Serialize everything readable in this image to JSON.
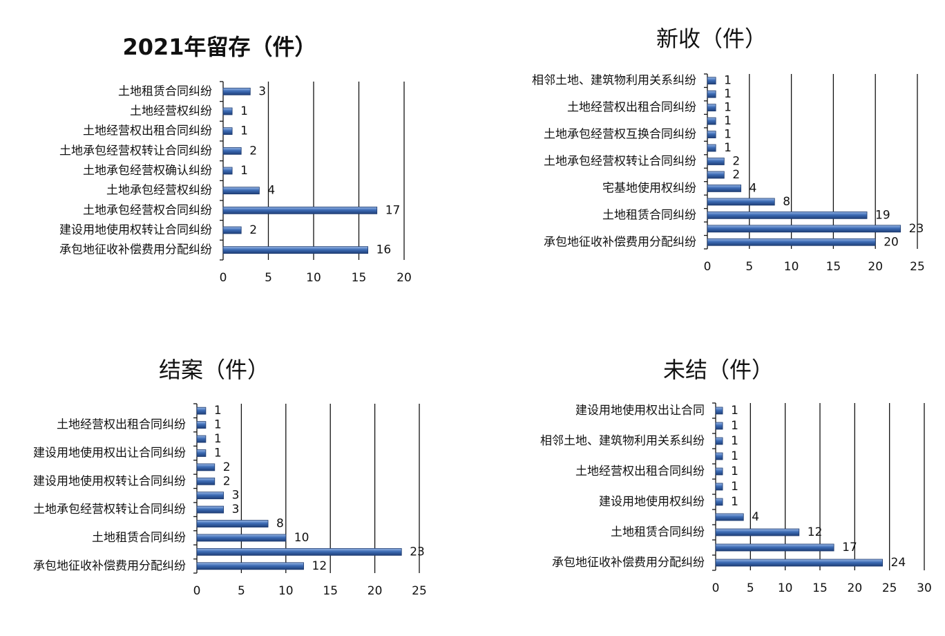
{
  "chart_data": [
    {
      "type": "bar",
      "orientation": "horizontal",
      "title": "2021年留存（件）",
      "categories": [
        "土地租赁合同纠纷",
        "土地经营权纠纷",
        "土地经营权出租合同纠纷",
        "土地承包经营权转让合同纠纷",
        "土地承包经营权确认纠纷",
        "土地承包经营权纠纷",
        "土地承包经营权合同纠纷",
        "建设用地使用权转让合同纠纷",
        "承包地征收补偿费用分配纠纷"
      ],
      "values": [
        3,
        1,
        1,
        2,
        1,
        4,
        17,
        2,
        16
      ],
      "color": "#3d6cb5",
      "xlim": [
        0,
        20
      ],
      "xticks": [
        0,
        5,
        10,
        15,
        20
      ],
      "grid": true
    },
    {
      "type": "bar",
      "orientation": "horizontal",
      "title": "新收（件）",
      "categories": [
        "相邻土地、建筑物利用关系纠纷",
        null,
        "土地经营权出租合同纠纷",
        null,
        "土地承包经营权互换合同纠纷",
        null,
        "土地承包经营权转让合同纠纷",
        null,
        "宅基地使用权纠纷",
        null,
        "土地租赁合同纠纷",
        null,
        "承包地征收补偿费用分配纠纷"
      ],
      "values": [
        1,
        1,
        1,
        1,
        1,
        1,
        2,
        2,
        4,
        8,
        19,
        23,
        20
      ],
      "color": "#3d6cb5",
      "xlim": [
        0,
        25
      ],
      "xticks": [
        0,
        5,
        10,
        15,
        20,
        25
      ],
      "grid": true
    },
    {
      "type": "bar",
      "orientation": "horizontal",
      "title": "结案（件）",
      "categories": [
        null,
        "土地经营权出租合同纠纷",
        null,
        "建设用地使用权出让合同纠纷",
        null,
        "建设用地使用权转让合同纠纷",
        null,
        "土地承包经营权转让合同纠纷",
        null,
        "土地租赁合同纠纷",
        null,
        "承包地征收补偿费用分配纠纷"
      ],
      "values": [
        1,
        1,
        1,
        1,
        2,
        2,
        3,
        3,
        8,
        10,
        23,
        12
      ],
      "color": "#3d6cb5",
      "xlim": [
        0,
        25
      ],
      "xticks": [
        0,
        5,
        10,
        15,
        20,
        25
      ],
      "grid": true
    },
    {
      "type": "bar",
      "orientation": "horizontal",
      "title": "未结（件）",
      "categories": [
        "建设用地使用权出让合同",
        null,
        "相邻土地、建筑物利用关系纠纷",
        null,
        "土地经营权出租合同纠纷",
        null,
        "建设用地使用权纠纷",
        null,
        "土地租赁合同纠纷",
        null,
        "承包地征收补偿费用分配纠纷"
      ],
      "values": [
        1,
        1,
        1,
        1,
        1,
        1,
        1,
        4,
        12,
        17,
        24
      ],
      "color": "#3d6cb5",
      "xlim": [
        0,
        30
      ],
      "xticks": [
        0,
        5,
        10,
        15,
        20,
        25,
        30
      ],
      "grid": true
    }
  ]
}
